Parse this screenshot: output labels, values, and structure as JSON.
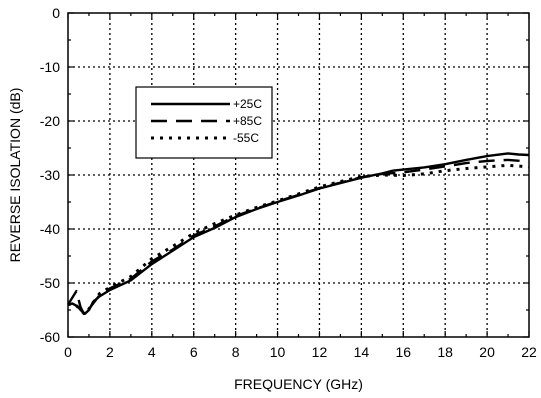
{
  "chart_data": {
    "type": "line",
    "title": "",
    "xlabel": "FREQUENCY (GHz)",
    "ylabel": "REVERSE ISOLATION (dB)",
    "xlim": [
      0,
      22
    ],
    "ylim": [
      -60,
      0
    ],
    "xticks": [
      0,
      2,
      4,
      6,
      8,
      10,
      12,
      14,
      16,
      18,
      20,
      22
    ],
    "yticks": [
      0,
      -10,
      -20,
      -30,
      -40,
      -50,
      -60
    ],
    "grid": true,
    "legend_position": "upper-left",
    "series": [
      {
        "name": "+25C",
        "style": "solid",
        "color": "#000000",
        "x": [
          0,
          0.2,
          0.45,
          0.6,
          0.8,
          1.0,
          1.2,
          1.5,
          2,
          3,
          4,
          5,
          6,
          7,
          8,
          9,
          10,
          11,
          12,
          13,
          14,
          15,
          15.5,
          16,
          17,
          18,
          19,
          20,
          21,
          21.5,
          22
        ],
        "y": [
          -54,
          -53.8,
          -54.3,
          -55,
          -55.7,
          -55,
          -53.5,
          -52.5,
          -51.3,
          -49.5,
          -46.5,
          -44,
          -41.5,
          -39.8,
          -37.8,
          -36.3,
          -35,
          -33.8,
          -32.5,
          -31.5,
          -30.5,
          -29.7,
          -29.2,
          -29,
          -28.6,
          -28,
          -27.2,
          -26.5,
          -26,
          -26.2,
          -26.3
        ]
      },
      {
        "name": "+85C",
        "style": "dashed",
        "color": "#000000",
        "x": [
          0,
          0.4,
          0.6,
          0.8,
          1.0,
          1.5,
          2,
          3,
          4,
          5,
          6,
          7,
          8,
          9,
          10,
          11,
          12,
          13,
          14,
          15,
          16,
          17,
          18,
          19,
          20,
          21,
          22
        ],
        "y": [
          -54,
          -51.5,
          -54.5,
          -56,
          -54.8,
          -52.3,
          -51,
          -49.2,
          -46,
          -43.8,
          -41.2,
          -39.5,
          -37.6,
          -36.2,
          -34.9,
          -33.7,
          -32.4,
          -31.4,
          -30.4,
          -29.8,
          -29.5,
          -29,
          -28.4,
          -27.8,
          -27.4,
          -27.2,
          -27.5
        ]
      },
      {
        "name": "-55C",
        "style": "dotted",
        "color": "#000000",
        "x": [
          0,
          0.3,
          0.6,
          0.8,
          1.0,
          1.5,
          2,
          3,
          4,
          5,
          6,
          7,
          8,
          9,
          10,
          11,
          12,
          13,
          14,
          15,
          16,
          17,
          18,
          19,
          20,
          21,
          22
        ],
        "y": [
          -54,
          -53.8,
          -55,
          -55.8,
          -54.8,
          -52,
          -50.8,
          -48.8,
          -45.5,
          -43.2,
          -40.8,
          -39,
          -37.4,
          -36,
          -34.8,
          -33.5,
          -32.2,
          -31.2,
          -30.3,
          -30,
          -30.1,
          -29.8,
          -29.2,
          -28.8,
          -28.5,
          -28.2,
          -28.5
        ]
      }
    ]
  }
}
